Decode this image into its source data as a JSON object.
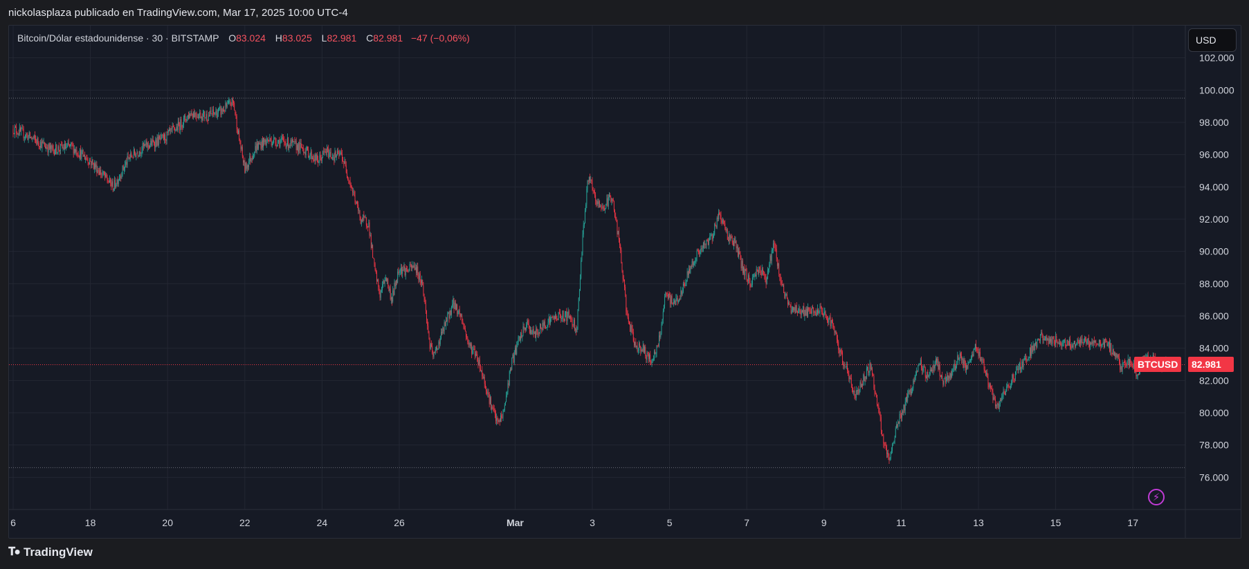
{
  "header": {
    "attribution": "nickolasplaza publicado en TradingView.com, Mar 17, 2025 10:00 UTC-4"
  },
  "legend": {
    "symbol": "Bitcoin/Dólar estadounidense · 30 · BITSTAMP",
    "open_label": "O",
    "open": "83.024",
    "high_label": "H",
    "high": "83.025",
    "low_label": "L",
    "low": "82.981",
    "close_label": "C",
    "close": "82.981",
    "change": "−47 (−0,06%)"
  },
  "currency_button": "USD",
  "price_tag": {
    "symbol": "BTCUSD",
    "price": "82.981"
  },
  "footer": {
    "brand": "TradingView",
    "logo_icon": "tradingview-logo-icon"
  },
  "icons": {
    "bolt": "lightning-icon"
  },
  "colors": {
    "up": "#26a69a",
    "down": "#f23645",
    "background": "#161a25",
    "grid": "#232733"
  },
  "chart_data": {
    "type": "candlestick",
    "interval": "30",
    "ylim": [
      74000,
      104000
    ],
    "yticks": [
      76000,
      78000,
      80000,
      82000,
      84000,
      86000,
      88000,
      90000,
      92000,
      94000,
      96000,
      98000,
      100000,
      102000
    ],
    "ytick_labels": [
      "76.000",
      "78.000",
      "80.000",
      "82.000",
      "84.000",
      "86.000",
      "88.000",
      "90.000",
      "92.000",
      "94.000",
      "96.000",
      "98.000",
      "100.000",
      "102.000"
    ],
    "xticks": [
      {
        "label": "6",
        "day": 0
      },
      {
        "label": "18",
        "day": 2
      },
      {
        "label": "20",
        "day": 4
      },
      {
        "label": "22",
        "day": 6
      },
      {
        "label": "24",
        "day": 8
      },
      {
        "label": "26",
        "day": 10
      },
      {
        "label": "Mar",
        "day": 13
      },
      {
        "label": "3",
        "day": 15
      },
      {
        "label": "5",
        "day": 17
      },
      {
        "label": "7",
        "day": 19
      },
      {
        "label": "9",
        "day": 21
      },
      {
        "label": "11",
        "day": 23
      },
      {
        "label": "13",
        "day": 25
      },
      {
        "label": "15",
        "day": 27
      },
      {
        "label": "17",
        "day": 29
      }
    ],
    "x_end_day": 30.35,
    "last_price": 82981,
    "hlines": [
      99500,
      76600
    ],
    "path": [
      [
        0.0,
        97600
      ],
      [
        0.5,
        97000
      ],
      [
        1.0,
        96300
      ],
      [
        1.5,
        96500
      ],
      [
        2.0,
        95600
      ],
      [
        2.6,
        94000
      ],
      [
        3.0,
        95800
      ],
      [
        3.4,
        96500
      ],
      [
        3.9,
        97000
      ],
      [
        4.3,
        97800
      ],
      [
        4.6,
        98600
      ],
      [
        5.0,
        98400
      ],
      [
        5.4,
        98700
      ],
      [
        5.7,
        99300
      ],
      [
        5.85,
        97000
      ],
      [
        6.0,
        95100
      ],
      [
        6.3,
        96500
      ],
      [
        6.6,
        96900
      ],
      [
        7.0,
        96800
      ],
      [
        7.5,
        96400
      ],
      [
        7.9,
        95600
      ],
      [
        8.1,
        96200
      ],
      [
        8.3,
        95900
      ],
      [
        8.5,
        96000
      ],
      [
        8.7,
        94500
      ],
      [
        9.0,
        92000
      ],
      [
        9.2,
        91800
      ],
      [
        9.35,
        89000
      ],
      [
        9.5,
        87300
      ],
      [
        9.65,
        88500
      ],
      [
        9.8,
        87000
      ],
      [
        10.0,
        89000
      ],
      [
        10.2,
        88800
      ],
      [
        10.4,
        89100
      ],
      [
        10.6,
        88000
      ],
      [
        10.8,
        84000
      ],
      [
        10.9,
        83500
      ],
      [
        11.1,
        84900
      ],
      [
        11.4,
        86800
      ],
      [
        11.6,
        86000
      ],
      [
        11.8,
        84200
      ],
      [
        12.0,
        83600
      ],
      [
        12.2,
        82000
      ],
      [
        12.4,
        80300
      ],
      [
        12.55,
        79300
      ],
      [
        12.7,
        80000
      ],
      [
        12.9,
        83000
      ],
      [
        13.1,
        84500
      ],
      [
        13.3,
        85500
      ],
      [
        13.5,
        84800
      ],
      [
        13.8,
        85600
      ],
      [
        14.1,
        86000
      ],
      [
        14.4,
        86000
      ],
      [
        14.6,
        85200
      ],
      [
        14.75,
        91000
      ],
      [
        14.9,
        94700
      ],
      [
        15.1,
        93000
      ],
      [
        15.3,
        92700
      ],
      [
        15.5,
        93500
      ],
      [
        15.7,
        90500
      ],
      [
        15.9,
        86000
      ],
      [
        16.1,
        84200
      ],
      [
        16.3,
        84000
      ],
      [
        16.5,
        83200
      ],
      [
        16.7,
        84000
      ],
      [
        16.9,
        87300
      ],
      [
        17.1,
        86800
      ],
      [
        17.3,
        87300
      ],
      [
        17.5,
        88800
      ],
      [
        17.7,
        89800
      ],
      [
        17.9,
        90300
      ],
      [
        18.1,
        91000
      ],
      [
        18.3,
        92400
      ],
      [
        18.5,
        91000
      ],
      [
        18.7,
        90500
      ],
      [
        18.9,
        88900
      ],
      [
        19.1,
        88000
      ],
      [
        19.3,
        89000
      ],
      [
        19.5,
        88300
      ],
      [
        19.7,
        90500
      ],
      [
        19.9,
        88000
      ],
      [
        20.1,
        86500
      ],
      [
        20.3,
        86400
      ],
      [
        20.6,
        86200
      ],
      [
        20.9,
        86300
      ],
      [
        21.2,
        85600
      ],
      [
        21.4,
        83800
      ],
      [
        21.6,
        82600
      ],
      [
        21.8,
        81000
      ],
      [
        22.0,
        82000
      ],
      [
        22.2,
        83000
      ],
      [
        22.4,
        80300
      ],
      [
        22.55,
        78000
      ],
      [
        22.7,
        76900
      ],
      [
        22.85,
        79000
      ],
      [
        23.1,
        80500
      ],
      [
        23.3,
        81800
      ],
      [
        23.5,
        83000
      ],
      [
        23.7,
        82200
      ],
      [
        23.9,
        83300
      ],
      [
        24.1,
        81800
      ],
      [
        24.3,
        82400
      ],
      [
        24.5,
        83600
      ],
      [
        24.7,
        82600
      ],
      [
        24.9,
        84000
      ],
      [
        25.1,
        83300
      ],
      [
        25.3,
        81500
      ],
      [
        25.45,
        80300
      ],
      [
        25.6,
        80800
      ],
      [
        25.8,
        81800
      ],
      [
        26.0,
        82600
      ],
      [
        26.2,
        83300
      ],
      [
        26.4,
        84000
      ],
      [
        26.6,
        84700
      ],
      [
        26.8,
        84500
      ],
      [
        27.1,
        84400
      ],
      [
        27.4,
        84300
      ],
      [
        27.7,
        84400
      ],
      [
        28.0,
        84300
      ],
      [
        28.3,
        84300
      ],
      [
        28.5,
        83800
      ],
      [
        28.7,
        82800
      ],
      [
        28.9,
        83200
      ],
      [
        29.1,
        82500
      ],
      [
        29.3,
        83200
      ],
      [
        29.5,
        83300
      ],
      [
        29.7,
        83000
      ],
      [
        29.9,
        82981
      ]
    ]
  }
}
